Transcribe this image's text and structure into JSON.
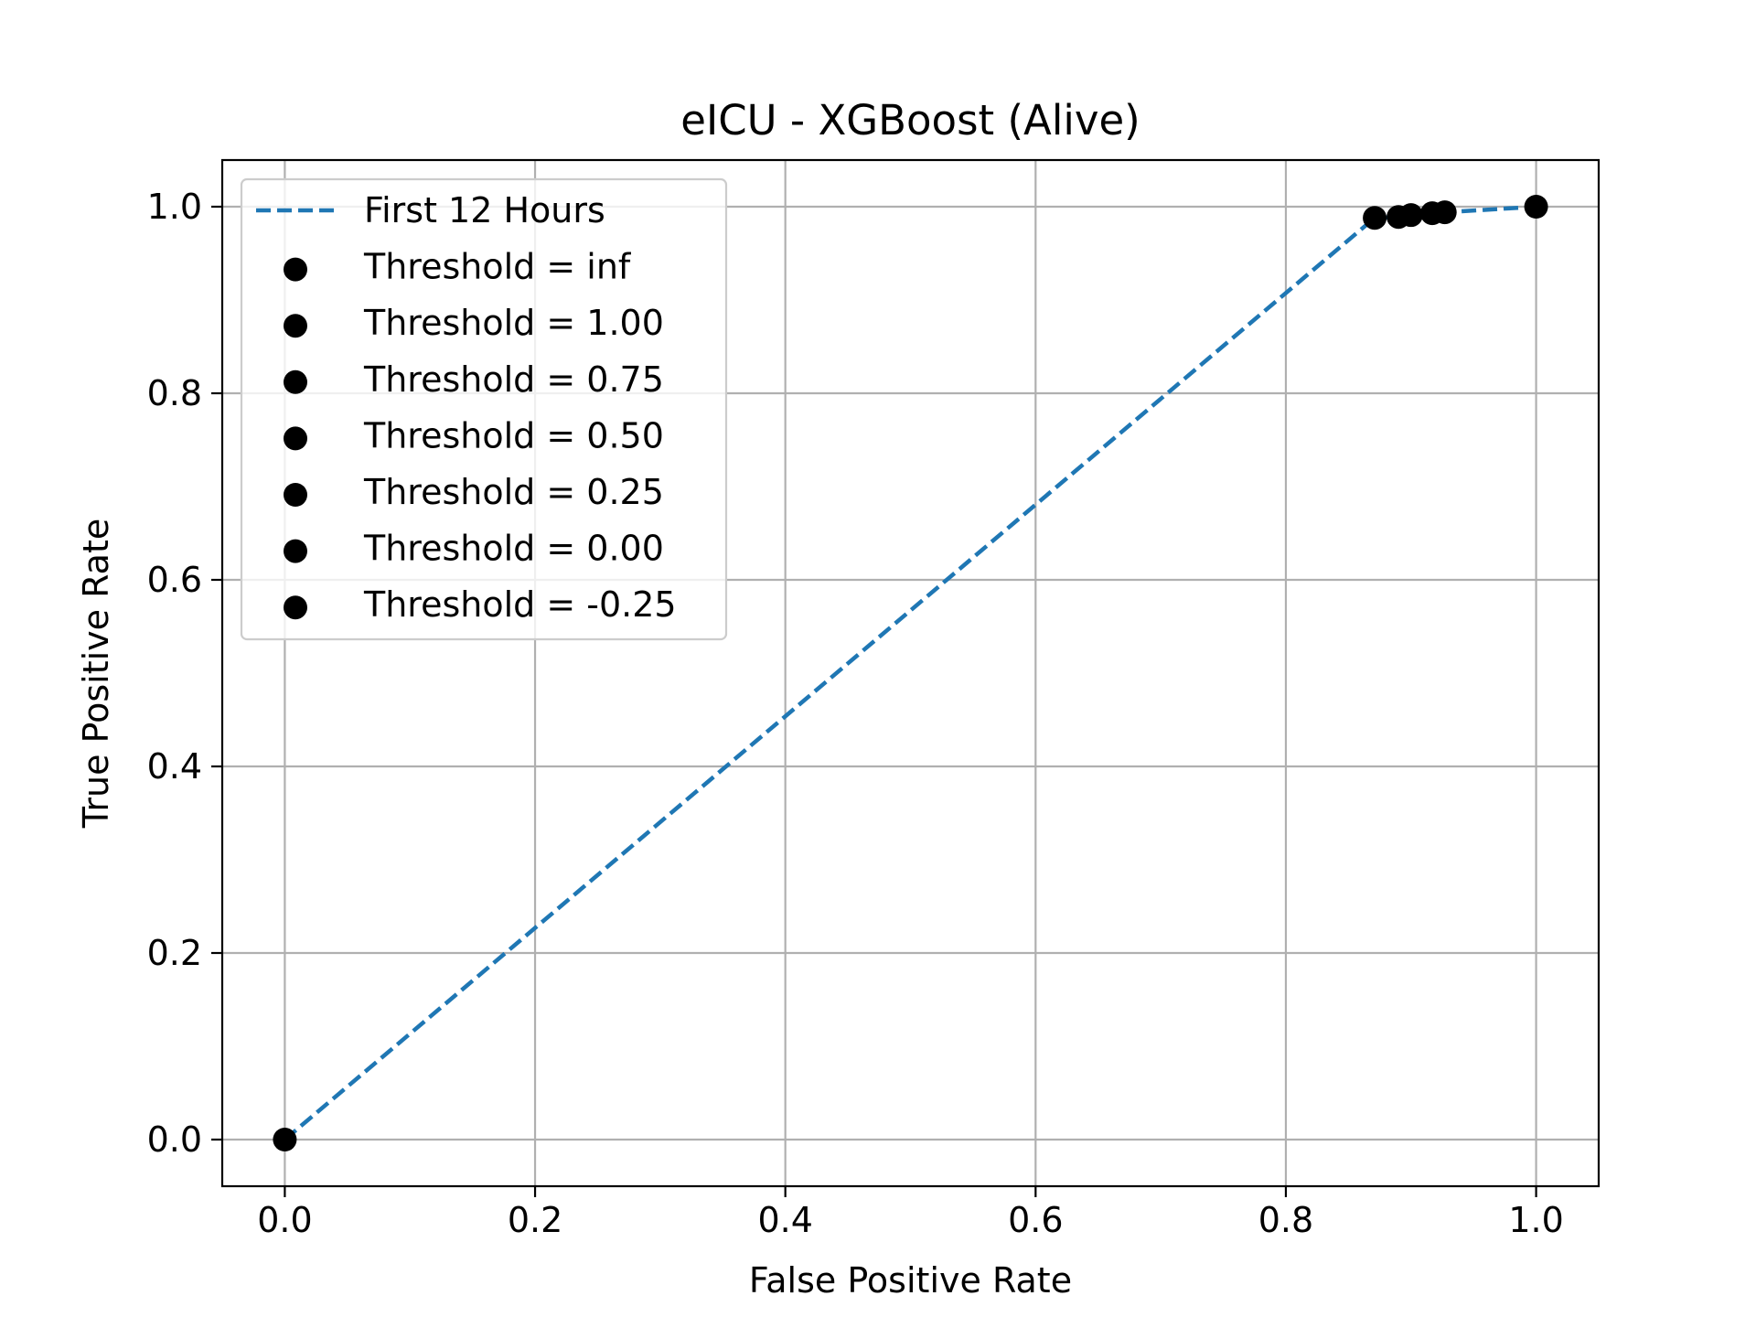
{
  "chart_data": {
    "type": "line",
    "title": "eICU - XGBoost (Alive)",
    "xlabel": "False Positive Rate",
    "ylabel": "True Positive Rate",
    "xlim": [
      -0.05,
      1.05
    ],
    "ylim": [
      -0.05,
      1.05
    ],
    "xticks": [
      0.0,
      0.2,
      0.4,
      0.6,
      0.8,
      1.0
    ],
    "xtick_labels": [
      "0.0",
      "0.2",
      "0.4",
      "0.6",
      "0.8",
      "1.0"
    ],
    "yticks": [
      0.0,
      0.2,
      0.4,
      0.6,
      0.8,
      1.0
    ],
    "ytick_labels": [
      "0.0",
      "0.2",
      "0.4",
      "0.6",
      "0.8",
      "1.0"
    ],
    "grid": true,
    "legend_position": "upper-left",
    "series": [
      {
        "name": "First 12 Hours",
        "style": "dashed",
        "color": "#1f77b4",
        "x": [
          0.0,
          0.871,
          0.89,
          0.9,
          0.917,
          0.927,
          1.0
        ],
        "y": [
          0.0,
          0.988,
          0.989,
          0.991,
          0.993,
          0.994,
          1.0
        ]
      }
    ],
    "threshold_points": [
      {
        "label": "Threshold = inf",
        "x": 0.0,
        "y": 0.0
      },
      {
        "label": "Threshold = 1.00",
        "x": 0.871,
        "y": 0.988
      },
      {
        "label": "Threshold = 0.75",
        "x": 0.89,
        "y": 0.989
      },
      {
        "label": "Threshold = 0.50",
        "x": 0.9,
        "y": 0.991
      },
      {
        "label": "Threshold = 0.25",
        "x": 0.917,
        "y": 0.993
      },
      {
        "label": "Threshold = 0.00",
        "x": 0.927,
        "y": 0.994
      },
      {
        "label": "Threshold = -0.25",
        "x": 1.0,
        "y": 1.0
      }
    ],
    "point_color": "#000000",
    "grid_color": "#b0b0b0"
  }
}
